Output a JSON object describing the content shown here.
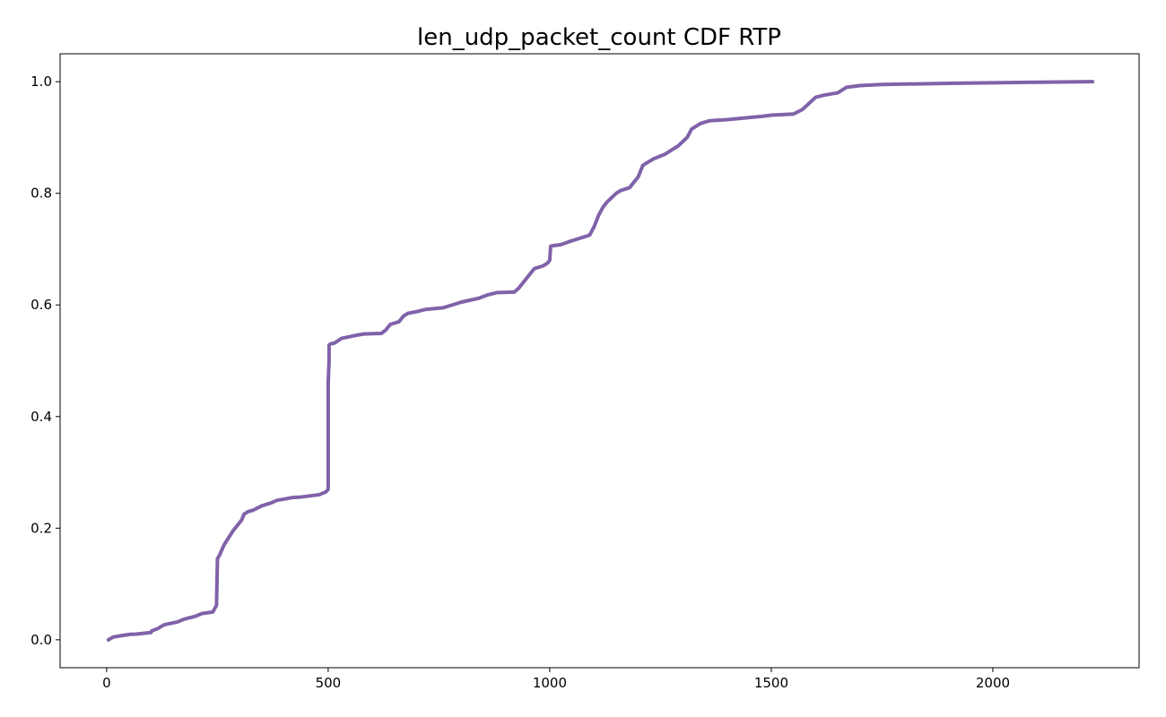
{
  "chart_data": {
    "type": "line",
    "title": "len_udp_packet_count CDF RTP",
    "xlabel": "",
    "ylabel": "",
    "xlim": [
      -105,
      2330
    ],
    "ylim": [
      -0.05,
      1.05
    ],
    "xticks": [
      0,
      500,
      1000,
      1500,
      2000
    ],
    "xtick_labels": [
      "0",
      "500",
      "1000",
      "1500",
      "2000"
    ],
    "yticks": [
      0.0,
      0.2,
      0.4,
      0.6,
      0.8,
      1.0
    ],
    "ytick_labels": [
      "0.0",
      "0.2",
      "0.4",
      "0.6",
      "0.8",
      "1.0"
    ],
    "grid": false,
    "legend": "none",
    "line_color": "#8062a9",
    "series": [
      {
        "x": [
          4,
          15,
          30,
          55,
          65,
          100,
          102,
          115,
          130,
          160,
          175,
          200,
          215,
          240,
          248,
          250,
          250,
          255,
          265,
          285,
          295,
          305,
          310,
          320,
          330,
          350,
          370,
          385,
          400,
          420,
          440,
          480,
          495,
          500,
          500,
          502,
          502,
          505,
          515,
          530,
          560,
          580,
          620,
          630,
          640,
          660,
          670,
          680,
          700,
          720,
          760,
          780,
          800,
          840,
          860,
          870,
          880,
          920,
          930,
          950,
          965,
          985,
          995,
          1000,
          1002,
          1005,
          1025,
          1050,
          1070,
          1090,
          1100,
          1110,
          1120,
          1130,
          1150,
          1160,
          1180,
          1200,
          1210,
          1220,
          1235,
          1260,
          1270,
          1290,
          1310,
          1320,
          1340,
          1360,
          1400,
          1440,
          1480,
          1500,
          1550,
          1570,
          1600,
          1620,
          1650,
          1660,
          1670,
          1700,
          1750,
          1900,
          2000,
          2100,
          2225
        ],
        "y": [
          0.0,
          0.005,
          0.007,
          0.01,
          0.01,
          0.013,
          0.016,
          0.02,
          0.027,
          0.032,
          0.037,
          0.042,
          0.047,
          0.05,
          0.062,
          0.14,
          0.145,
          0.152,
          0.17,
          0.195,
          0.205,
          0.215,
          0.225,
          0.23,
          0.232,
          0.24,
          0.245,
          0.25,
          0.252,
          0.255,
          0.256,
          0.26,
          0.265,
          0.27,
          0.46,
          0.5,
          0.528,
          0.53,
          0.532,
          0.54,
          0.545,
          0.548,
          0.549,
          0.555,
          0.565,
          0.57,
          0.58,
          0.585,
          0.588,
          0.592,
          0.595,
          0.6,
          0.605,
          0.612,
          0.618,
          0.62,
          0.622,
          0.623,
          0.63,
          0.65,
          0.665,
          0.67,
          0.675,
          0.68,
          0.705,
          0.706,
          0.708,
          0.715,
          0.72,
          0.725,
          0.74,
          0.76,
          0.775,
          0.785,
          0.8,
          0.805,
          0.81,
          0.83,
          0.85,
          0.855,
          0.862,
          0.87,
          0.875,
          0.885,
          0.9,
          0.915,
          0.925,
          0.93,
          0.932,
          0.935,
          0.938,
          0.94,
          0.942,
          0.95,
          0.972,
          0.976,
          0.98,
          0.985,
          0.99,
          0.993,
          0.995,
          0.997,
          0.998,
          0.999,
          1.0
        ]
      }
    ]
  }
}
